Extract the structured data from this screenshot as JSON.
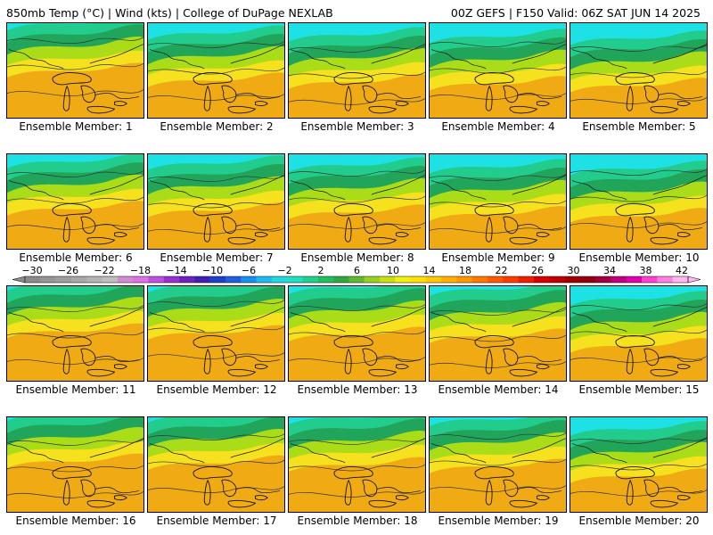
{
  "header": {
    "left_title": "850mb Temp (°C) | Wind (kts) | College of DuPage NEXLAB",
    "right_title": "00Z GEFS | F150 Valid: 06Z SAT JUN 14 2025"
  },
  "label_prefix": "Ensemble Member:",
  "members": [
    {
      "label": "Ensemble Member: 1"
    },
    {
      "label": "Ensemble Member: 2"
    },
    {
      "label": "Ensemble Member: 3"
    },
    {
      "label": "Ensemble Member: 4"
    },
    {
      "label": "Ensemble Member: 5"
    },
    {
      "label": "Ensemble Member: 6"
    },
    {
      "label": "Ensemble Member: 7"
    },
    {
      "label": "Ensemble Member: 8"
    },
    {
      "label": "Ensemble Member: 9"
    },
    {
      "label": "Ensemble Member: 10"
    },
    {
      "label": "Ensemble Member: 11"
    },
    {
      "label": "Ensemble Member: 12"
    },
    {
      "label": "Ensemble Member: 13"
    },
    {
      "label": "Ensemble Member: 14"
    },
    {
      "label": "Ensemble Member: 15"
    },
    {
      "label": "Ensemble Member: 16"
    },
    {
      "label": "Ensemble Member: 17"
    },
    {
      "label": "Ensemble Member: 18"
    },
    {
      "label": "Ensemble Member: 19"
    },
    {
      "label": "Ensemble Member: 20"
    }
  ],
  "colorbar": {
    "tick_labels": [
      "−30",
      "−26",
      "−22",
      "−18",
      "−14",
      "−10",
      "−6",
      "−2",
      "2",
      "6",
      "10",
      "14",
      "18",
      "22",
      "26",
      "30",
      "34",
      "38",
      "42"
    ],
    "colors": [
      "#8a8a8a",
      "#969696",
      "#9e9e9e",
      "#a8a8a8",
      "#b4b4b4",
      "#bfbfbf",
      "#d28cd2",
      "#e070e8",
      "#c050e0",
      "#9a30d0",
      "#7020c0",
      "#4020b0",
      "#2040c8",
      "#2060e0",
      "#1890f0",
      "#20b8f0",
      "#20d8e0",
      "#20e0c0",
      "#20d090",
      "#20c060",
      "#30a840",
      "#60b830",
      "#98d020",
      "#c8e010",
      "#f0f010",
      "#ffe000",
      "#ffc800",
      "#ffb000",
      "#ff9800",
      "#ff7800",
      "#ff5a00",
      "#ff3c00",
      "#f01e00",
      "#d80000",
      "#c00000",
      "#a00000",
      "#900010",
      "#a00040",
      "#c00080",
      "#e000b0",
      "#ff40d0",
      "#ff80e0",
      "#ffb8f0"
    ]
  },
  "panel_colors": {
    "cyan": "#1ee1e6",
    "teal": "#22cc8c",
    "green": "#21a55a",
    "lime": "#aadc18",
    "yellow": "#f5e11e",
    "orange": "#f0aa14",
    "red_orange": "#f06a10"
  }
}
